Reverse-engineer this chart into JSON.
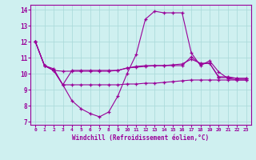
{
  "xlabel": "Windchill (Refroidissement éolien,°C)",
  "xlim": [
    -0.5,
    23.5
  ],
  "ylim": [
    6.8,
    14.3
  ],
  "yticks": [
    7,
    8,
    9,
    10,
    11,
    12,
    13,
    14
  ],
  "xticks": [
    0,
    1,
    2,
    3,
    4,
    5,
    6,
    7,
    8,
    9,
    10,
    11,
    12,
    13,
    14,
    15,
    16,
    17,
    18,
    19,
    20,
    21,
    22,
    23
  ],
  "bg_color": "#cff0f0",
  "line_color": "#990099",
  "grid_color": "#a8d8d8",
  "lines": [
    [
      12.0,
      10.5,
      10.2,
      9.3,
      8.3,
      7.8,
      7.5,
      7.3,
      7.6,
      8.6,
      10.0,
      11.2,
      13.4,
      13.9,
      13.8,
      13.8,
      13.8,
      11.3,
      10.5,
      10.8,
      10.1,
      9.7,
      9.6,
      9.6
    ],
    [
      12.0,
      10.5,
      10.3,
      9.3,
      10.2,
      10.2,
      10.2,
      10.2,
      10.2,
      10.2,
      10.35,
      10.4,
      10.45,
      10.5,
      10.5,
      10.55,
      10.6,
      10.9,
      10.65,
      10.65,
      9.75,
      9.75,
      9.7,
      9.7
    ],
    [
      12.0,
      10.5,
      10.2,
      10.15,
      10.15,
      10.15,
      10.15,
      10.15,
      10.15,
      10.2,
      10.35,
      10.45,
      10.5,
      10.5,
      10.5,
      10.5,
      10.5,
      11.05,
      10.6,
      10.65,
      9.8,
      9.8,
      9.7,
      9.7
    ],
    [
      12.0,
      10.5,
      10.2,
      9.3,
      9.3,
      9.3,
      9.3,
      9.3,
      9.3,
      9.3,
      9.35,
      9.35,
      9.4,
      9.4,
      9.45,
      9.5,
      9.55,
      9.6,
      9.6,
      9.6,
      9.6,
      9.6,
      9.6,
      9.6
    ]
  ]
}
